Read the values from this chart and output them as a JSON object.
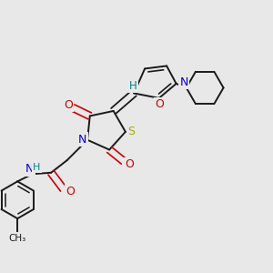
{
  "bg_color": "#e8e8e8",
  "bond_color": "#1a1a1a",
  "atom_colors": {
    "N": "#0000cc",
    "O": "#cc0000",
    "S": "#aaaa00",
    "H": "#008888",
    "C": "#1a1a1a"
  }
}
